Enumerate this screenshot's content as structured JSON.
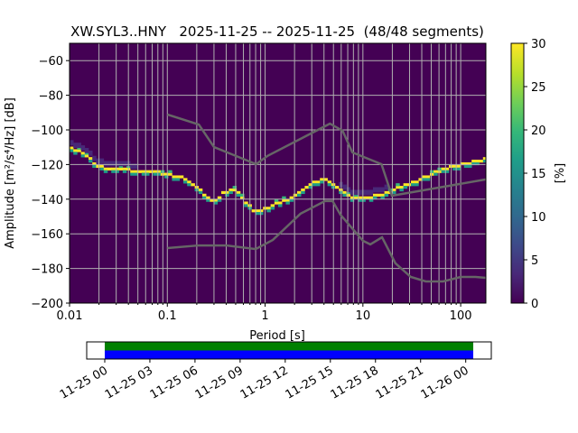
{
  "chart_data": {
    "type": "heatmap",
    "title": "XW.SYL3..HNY   2025-11-25 -- 2025-11-25  (48/48 segments)",
    "xlabel": "Period [s]",
    "ylabel": "Amplitude [m²/s⁴/Hz] [dB]",
    "xscale": "log",
    "xlim": [
      0.01,
      181
    ],
    "ylim": [
      -200,
      -50
    ],
    "xticks": [
      0.01,
      0.1,
      1,
      10,
      100
    ],
    "xtick_labels": [
      "0.01",
      "0.1",
      "1",
      "10",
      "100"
    ],
    "yticks": [
      -60,
      -80,
      -100,
      -120,
      -140,
      -160,
      -180,
      -200
    ],
    "ytick_labels": [
      "−60",
      "−80",
      "−100",
      "−120",
      "−140",
      "−160",
      "−180",
      "−200"
    ],
    "grid": true,
    "colorbar": {
      "label": "[%]",
      "range": [
        0,
        30
      ],
      "ticks": [
        "0",
        "5",
        "10",
        "15",
        "20",
        "25",
        "30"
      ],
      "colormap": "viridis"
    },
    "mode_curve": [
      [
        0.0102,
        -110
      ],
      [
        0.0147,
        -114.6
      ],
      [
        0.0202,
        -121.4
      ],
      [
        0.031,
        -122.9
      ],
      [
        0.047,
        -123.4
      ],
      [
        0.072,
        -124
      ],
      [
        0.1,
        -125.5
      ],
      [
        0.137,
        -127.1
      ],
      [
        0.188,
        -131.8
      ],
      [
        0.233,
        -136.5
      ],
      [
        0.294,
        -141.7
      ],
      [
        0.395,
        -135.4
      ],
      [
        0.51,
        -134.9
      ],
      [
        0.63,
        -141.7
      ],
      [
        0.75,
        -146.4
      ],
      [
        1.0,
        -145.8
      ],
      [
        1.75,
        -139.6
      ],
      [
        2.68,
        -132.3
      ],
      [
        4.1,
        -127.6
      ],
      [
        5.65,
        -133.3
      ],
      [
        7.77,
        -138.5
      ],
      [
        9.6,
        -140.1
      ],
      [
        14.7,
        -137.5
      ],
      [
        22.5,
        -133.9
      ],
      [
        34.4,
        -129.7
      ],
      [
        52.5,
        -125
      ],
      [
        80.5,
        -121.4
      ],
      [
        123,
        -118.8
      ],
      [
        181,
        -116.7
      ]
    ],
    "nhnm": [
      [
        0.1,
        -91.1
      ],
      [
        0.21,
        -96.9
      ],
      [
        0.3,
        -109.9
      ],
      [
        0.81,
        -119.8
      ],
      [
        1.06,
        -115
      ],
      [
        4.6,
        -96.4
      ],
      [
        6.2,
        -100.5
      ],
      [
        7.8,
        -113
      ],
      [
        15.5,
        -119.8
      ],
      [
        19.8,
        -138
      ],
      [
        181,
        -128.6
      ]
    ],
    "nlnm": [
      [
        0.1,
        -168.2
      ],
      [
        0.21,
        -166.7
      ],
      [
        0.4,
        -166.7
      ],
      [
        0.8,
        -168.8
      ],
      [
        1.2,
        -163.5
      ],
      [
        2.3,
        -148.4
      ],
      [
        4.1,
        -141.1
      ],
      [
        4.9,
        -141.1
      ],
      [
        5.9,
        -149
      ],
      [
        10,
        -164
      ],
      [
        11.9,
        -166.1
      ],
      [
        15.7,
        -162
      ],
      [
        21.5,
        -177
      ],
      [
        30.9,
        -184.9
      ],
      [
        44,
        -187.5
      ],
      [
        66,
        -187.5
      ],
      [
        100,
        -184.9
      ],
      [
        142,
        -184.9
      ],
      [
        181,
        -185.4
      ]
    ],
    "timeline": {
      "tick_labels": [
        "11-25 00",
        "11-25 03",
        "11-25 06",
        "11-25 09",
        "11-25 12",
        "11-25 15",
        "11-25 18",
        "11-25 21",
        "11-26 00"
      ],
      "range_hours": [
        -1.2,
        25.7
      ],
      "data_coverage_hours": [
        0,
        24.5
      ],
      "used_coverage_hours": [
        0,
        24.5
      ],
      "data_color": "#008000",
      "used_color": "#0000ff"
    },
    "colors": {
      "background": "#440154",
      "grid": "#b0b0b0",
      "noise_models": "#666666"
    }
  }
}
